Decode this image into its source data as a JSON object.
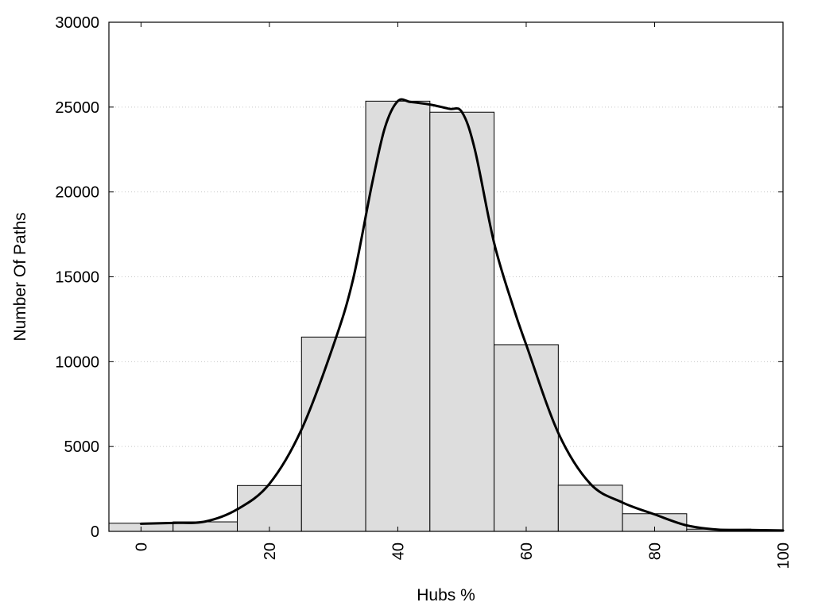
{
  "chart_data": {
    "type": "bar",
    "xlabel": "Hubs %",
    "ylabel": "Number Of Paths",
    "xlim": [
      -5,
      100
    ],
    "ylim": [
      0,
      30000
    ],
    "x_ticks": [
      0,
      20,
      40,
      60,
      80,
      100
    ],
    "y_ticks": [
      0,
      5000,
      10000,
      15000,
      20000,
      25000,
      30000
    ],
    "grid": "horizontal-dotted",
    "bar_color": "#dddddd",
    "bin_width": 10,
    "bins": [
      {
        "x": 0,
        "value": 480
      },
      {
        "x": 10,
        "value": 560
      },
      {
        "x": 20,
        "value": 2700
      },
      {
        "x": 30,
        "value": 11450
      },
      {
        "x": 40,
        "value": 25350
      },
      {
        "x": 50,
        "value": 24700
      },
      {
        "x": 60,
        "value": 11000
      },
      {
        "x": 70,
        "value": 2720
      },
      {
        "x": 80,
        "value": 1040
      },
      {
        "x": 90,
        "value": 130
      }
    ],
    "curve": {
      "x": [
        0,
        5,
        10,
        15,
        20,
        25,
        30,
        33,
        36,
        38,
        40,
        42,
        45,
        48,
        50,
        52,
        55,
        58,
        60,
        65,
        70,
        75,
        80,
        85,
        90,
        95,
        100
      ],
      "y": [
        450,
        500,
        580,
        1300,
        2800,
        6000,
        11000,
        14800,
        20500,
        23800,
        25350,
        25300,
        25150,
        24900,
        24700,
        22500,
        17000,
        13200,
        11000,
        5800,
        2800,
        1700,
        1000,
        350,
        100,
        80,
        50
      ]
    }
  }
}
